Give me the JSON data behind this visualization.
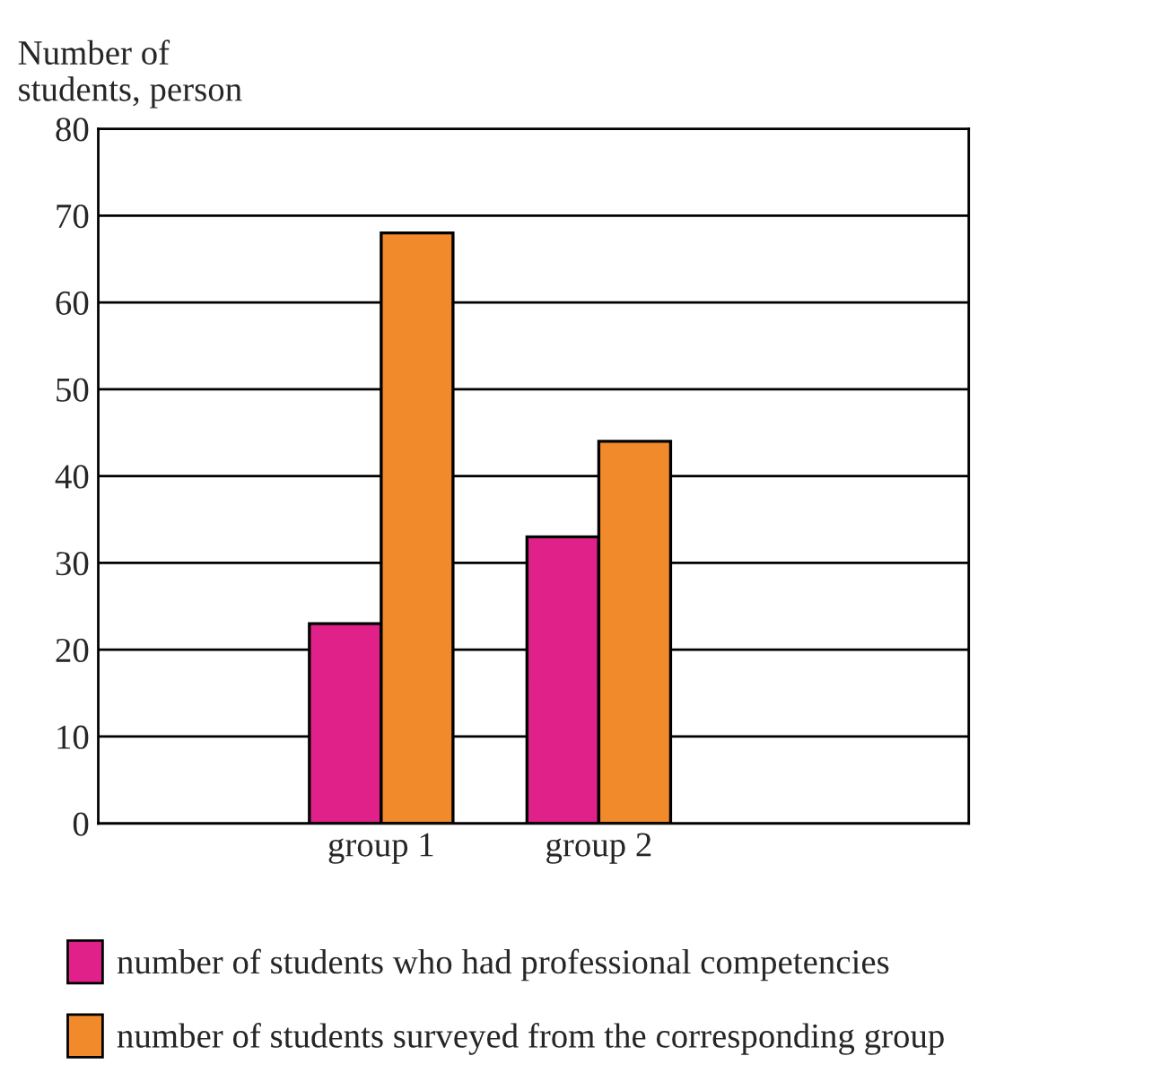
{
  "chart_data": {
    "type": "bar",
    "ylabel": "Number of\nstudents, person",
    "categories": [
      "group 1",
      "group 2"
    ],
    "series": [
      {
        "name": "number of students who had professional competencies",
        "color": "#e0218a",
        "values": [
          23,
          33
        ]
      },
      {
        "name": "number of students surveyed from the corresponding group",
        "color": "#f08a2b",
        "values": [
          68,
          44
        ]
      }
    ],
    "ylim": [
      0,
      80
    ],
    "yticks": [
      0,
      10,
      20,
      30,
      40,
      50,
      60,
      70,
      80
    ],
    "grid": "y",
    "legend": "bottom"
  }
}
